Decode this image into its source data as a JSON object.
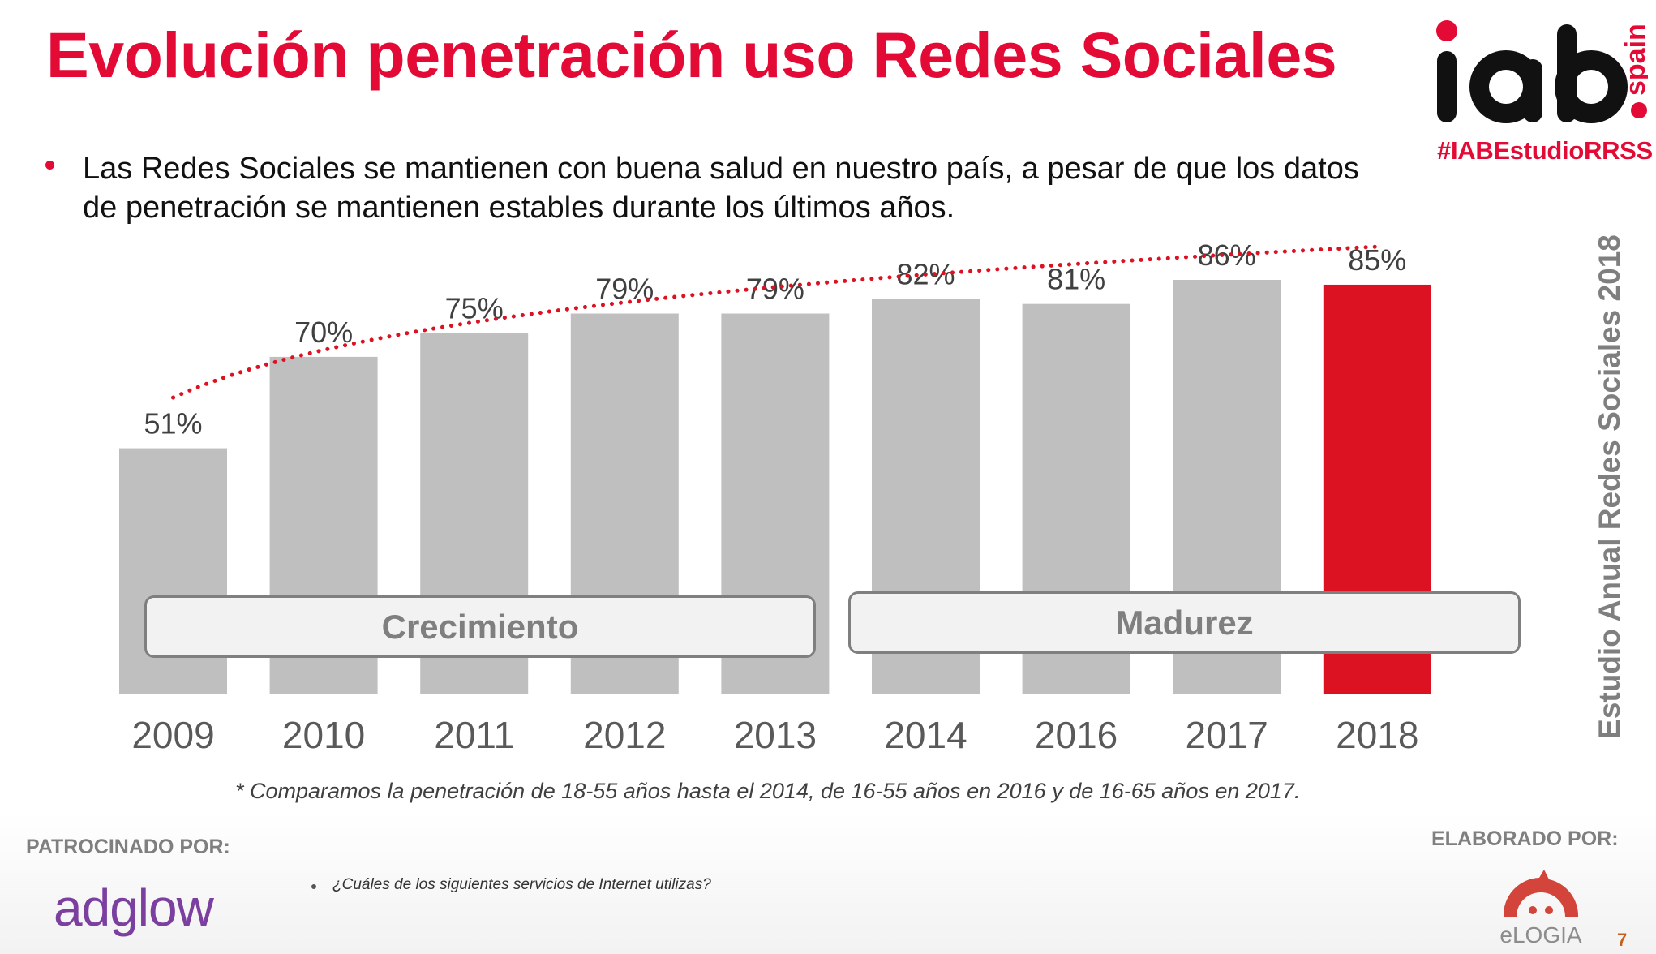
{
  "title": "Evolución penetración uso Redes Sociales",
  "logo": {
    "name": "iab",
    "suffix": "spain",
    "hashtag": "#IABEstudioRRSS"
  },
  "bullet": "Las Redes Sociales se mantienen con buena salud en nuestro país, a pesar de que los datos de penetración se mantienen estables durante los últimos años.",
  "side_label": "Estudio Anual Redes Sociales 2018",
  "phases": [
    {
      "label": "Crecimiento"
    },
    {
      "label": "Madurez"
    }
  ],
  "footnote": "* Comparamos la penetración de 18-55 años hasta el 2014, de 16-55 años en 2016 y de 16-65 años en 2017.",
  "sponsor": {
    "label": "PATROCINADO POR:",
    "name": "adglow"
  },
  "question": "¿Cuáles de los siguientes servicios de Internet utilizas?",
  "elaborated": {
    "label": "ELABORADO POR:",
    "name": "eLOGIA"
  },
  "page_number": "7",
  "colors": {
    "accent": "#e30a36",
    "bar": "#bfbfbf",
    "highlight_bar": "#dc1222",
    "trend": "#dc1222"
  },
  "chart_data": {
    "type": "bar",
    "title": "Evolución penetración uso Redes Sociales",
    "xlabel": "",
    "ylabel": "",
    "categories": [
      "2009",
      "2010",
      "2011",
      "2012",
      "2013",
      "2014",
      "2016",
      "2017",
      "2018"
    ],
    "values": [
      51,
      70,
      75,
      79,
      79,
      82,
      81,
      86,
      85
    ],
    "value_labels": [
      "51%",
      "70%",
      "75%",
      "79%",
      "79%",
      "82%",
      "81%",
      "86%",
      "85%"
    ],
    "highlight_index": 8,
    "ylim": [
      0,
      100
    ],
    "grid": false,
    "trendline": {
      "type": "logarithmic",
      "style": "dotted"
    },
    "annotations": [
      {
        "label": "Crecimiento",
        "from": "2009",
        "to": "2013"
      },
      {
        "label": "Madurez",
        "from": "2014",
        "to": "2018"
      }
    ]
  }
}
